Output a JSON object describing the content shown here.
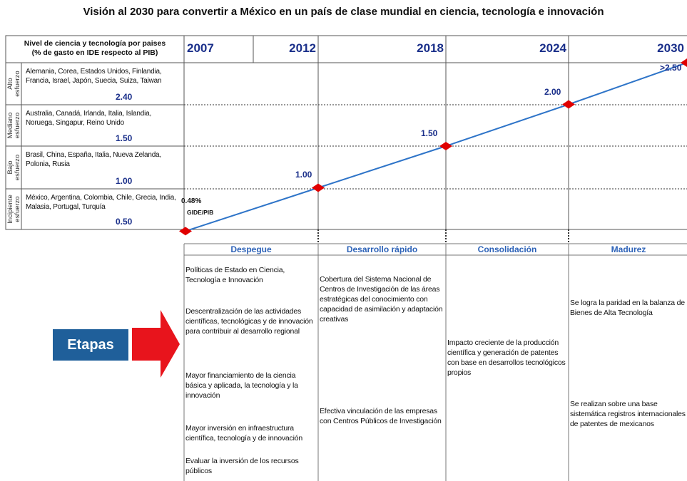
{
  "title": "Visión al 2030 para convertir a México en un país de clase mundial en ciencia, tecnología e innovación",
  "header": {
    "label_line1": "Nivel de ciencia y tecnología por paises",
    "label_line2": "(% de gasto en IDE respecto al PIB)"
  },
  "levels": [
    {
      "name_line1": "Alto",
      "name_line2": "esfuerzo",
      "countries": "Alemania, Corea, Estados Unidos, Finlandia, Francia, Israel, Japón, Suecia, Suiza, Taiwan",
      "value_label": "2.40"
    },
    {
      "name_line1": "Mediano",
      "name_line2": "esfuerzo",
      "countries": "Australia, Canadá, Irlanda, Italia, Islandia, Noruega, Singapur, Reino Unido",
      "value_label": "1.50"
    },
    {
      "name_line1": "Bajo",
      "name_line2": "esfuerzo",
      "countries": "Brasil, China, España, Italia, Nueva Zelanda, Polonia, Rusia",
      "value_label": "1.00"
    },
    {
      "name_line1": "Incipiente",
      "name_line2": "esfuerzo",
      "countries": "México, Argentina, Colombia, Chile, Grecia, India, Malasia, Portugal, Turquía",
      "value_label": "0.50"
    }
  ],
  "chart_data": {
    "type": "line",
    "categories": [
      "2007",
      "2012",
      "2018",
      "2024",
      "2030"
    ],
    "values": [
      0.48,
      1.0,
      1.5,
      2.0,
      2.5
    ],
    "value_labels": [
      "0.48%",
      "1.00",
      "1.50",
      "2.00",
      ">2.50"
    ],
    "note": "GIDE/PIB",
    "color": "#2e74c8",
    "marker_color": "#e00000",
    "ylim": [
      0.5,
      2.5
    ]
  },
  "stages": {
    "label": "Etapas",
    "columns": [
      {
        "title": "Despegue",
        "items": [
          "Políticas de Estado en Ciencia, Tecnología e Innovación",
          "Descentralización de las actividades científicas, tecnológicas y de innovación para contribuir al desarrollo regional",
          "Mayor financiamiento de la ciencia básica y aplicada, la tecnología y la innovación",
          "Mayor inversión en infraestructura científica, tecnología y de innovación",
          "Evaluar la inversión de los recursos públicos"
        ]
      },
      {
        "title": "Desarrollo rápido",
        "items": [
          "Cobertura del Sistema Nacional de Centros de Investigación de las áreas estratégicas del conocimiento con capacidad de asimilación y adaptación creativas",
          "Efectiva vinculación de las empresas con Centros Públicos de Investigación"
        ]
      },
      {
        "title": "Consolidación",
        "items": [
          "Impacto creciente de la producción científica y generación de patentes con base en desarrollos tecnológicos propios"
        ]
      },
      {
        "title": "Madurez",
        "items": [
          "Se logra la paridad en la balanza de Bienes de Alta Tecnología",
          "Se realizan sobre una base sistemática registros internacionales de patentes de mexicanos"
        ]
      }
    ]
  }
}
